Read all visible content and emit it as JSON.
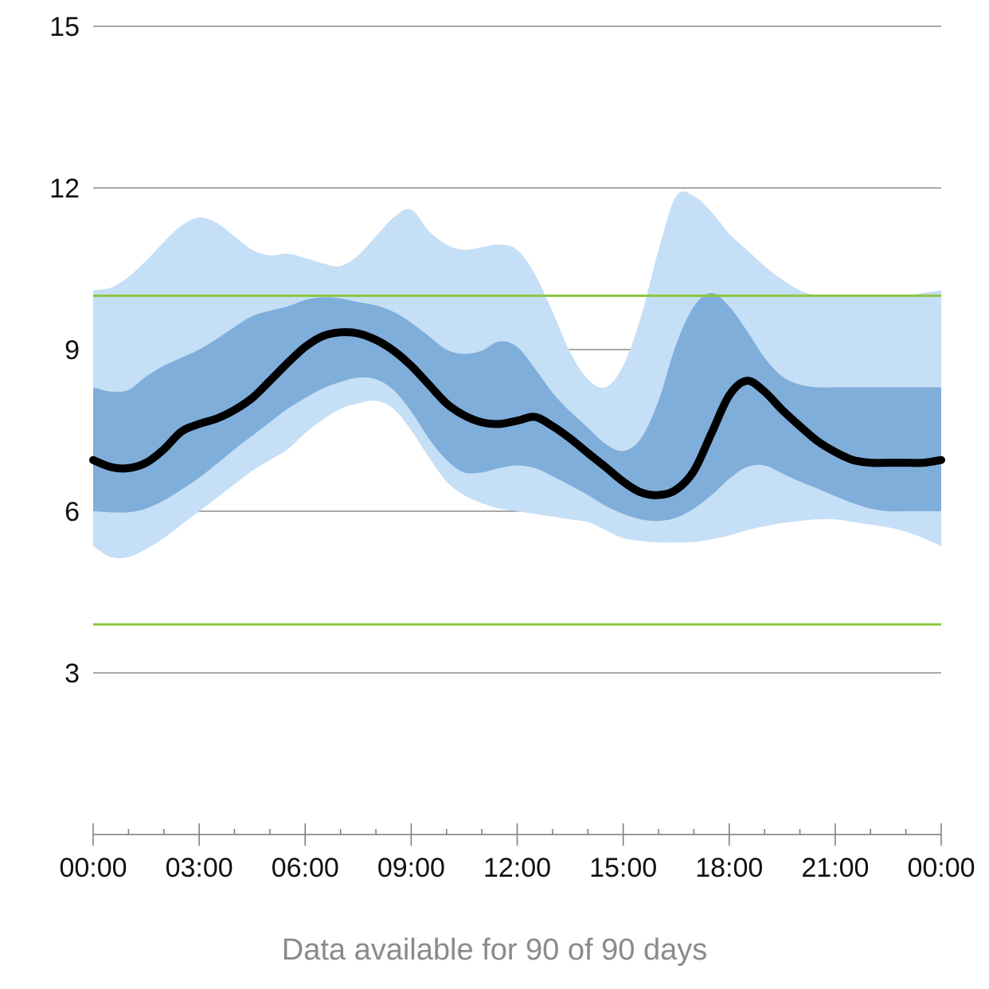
{
  "chart_data": {
    "type": "area",
    "title": "",
    "xlabel": "",
    "ylabel": "",
    "ylim": [
      0,
      15
    ],
    "yticks": [
      3,
      6,
      9,
      12,
      15
    ],
    "xticks": [
      0,
      3,
      6,
      9,
      12,
      15,
      18,
      21,
      24
    ],
    "xtick_labels": [
      "00:00",
      "03:00",
      "06:00",
      "09:00",
      "12:00",
      "15:00",
      "18:00",
      "21:00",
      "00:00"
    ],
    "target_range": {
      "low": 3.9,
      "high": 10.0,
      "color": "#8cc63f"
    },
    "x": [
      0,
      0.5,
      1,
      1.5,
      2,
      2.5,
      3,
      3.5,
      4,
      4.5,
      5,
      5.5,
      6,
      6.5,
      7,
      7.5,
      8,
      8.5,
      9,
      9.5,
      10,
      10.5,
      11,
      11.5,
      12,
      12.5,
      13,
      13.5,
      14,
      14.5,
      15,
      15.5,
      16,
      16.5,
      17,
      17.5,
      18,
      18.5,
      19,
      19.5,
      20,
      20.5,
      21,
      21.5,
      22,
      22.5,
      23,
      23.5,
      24
    ],
    "series": [
      {
        "name": "",
        "kind": "band",
        "color": "#c5dff7",
        "lower": [
          5.35,
          5.15,
          5.15,
          5.3,
          5.5,
          5.75,
          6.0,
          6.25,
          6.5,
          6.75,
          6.95,
          7.15,
          7.45,
          7.7,
          7.9,
          8.0,
          8.05,
          7.9,
          7.5,
          7.0,
          6.55,
          6.3,
          6.15,
          6.05,
          6.0,
          5.95,
          5.9,
          5.85,
          5.8,
          5.65,
          5.5,
          5.45,
          5.42,
          5.42,
          5.43,
          5.48,
          5.55,
          5.65,
          5.72,
          5.78,
          5.82,
          5.85,
          5.85,
          5.8,
          5.75,
          5.7,
          5.62,
          5.5,
          5.35
        ],
        "upper": [
          10.1,
          10.15,
          10.35,
          10.65,
          11.0,
          11.3,
          11.45,
          11.35,
          11.1,
          10.85,
          10.75,
          10.78,
          10.7,
          10.6,
          10.55,
          10.75,
          11.1,
          11.45,
          11.6,
          11.2,
          10.95,
          10.85,
          10.9,
          10.95,
          10.85,
          10.4,
          9.7,
          8.95,
          8.45,
          8.3,
          8.7,
          9.6,
          10.85,
          11.85,
          11.85,
          11.55,
          11.15,
          10.85,
          10.55,
          10.3,
          10.1,
          10.0,
          10.0,
          10.0,
          10.0,
          10.0,
          10.0,
          10.05,
          10.1
        ]
      },
      {
        "name": "",
        "kind": "band",
        "color": "#80aedb",
        "lower": [
          6.0,
          5.98,
          5.98,
          6.05,
          6.2,
          6.4,
          6.62,
          6.88,
          7.15,
          7.4,
          7.65,
          7.9,
          8.1,
          8.28,
          8.4,
          8.48,
          8.45,
          8.25,
          7.85,
          7.35,
          6.95,
          6.72,
          6.72,
          6.8,
          6.85,
          6.8,
          6.65,
          6.48,
          6.3,
          6.1,
          5.95,
          5.85,
          5.82,
          5.88,
          6.05,
          6.3,
          6.6,
          6.82,
          6.85,
          6.7,
          6.55,
          6.42,
          6.28,
          6.15,
          6.05,
          6.0,
          6.0,
          6.0,
          6.0
        ],
        "upper": [
          8.3,
          8.22,
          8.25,
          8.5,
          8.7,
          8.85,
          9.0,
          9.2,
          9.42,
          9.62,
          9.72,
          9.8,
          9.92,
          9.97,
          9.95,
          9.88,
          9.82,
          9.7,
          9.5,
          9.25,
          9.0,
          8.92,
          8.98,
          9.15,
          9.05,
          8.65,
          8.2,
          7.85,
          7.55,
          7.25,
          7.12,
          7.35,
          8.05,
          9.1,
          9.8,
          10.05,
          9.8,
          9.35,
          8.85,
          8.5,
          8.35,
          8.3,
          8.3,
          8.3,
          8.3,
          8.3,
          8.3,
          8.3,
          8.3
        ]
      },
      {
        "name": "",
        "kind": "line",
        "color": "#000000",
        "values": [
          6.95,
          6.82,
          6.8,
          6.9,
          7.15,
          7.48,
          7.62,
          7.72,
          7.88,
          8.1,
          8.42,
          8.75,
          9.05,
          9.25,
          9.32,
          9.3,
          9.18,
          8.98,
          8.7,
          8.35,
          8.0,
          7.78,
          7.65,
          7.62,
          7.68,
          7.75,
          7.58,
          7.35,
          7.08,
          6.82,
          6.55,
          6.35,
          6.3,
          6.4,
          6.75,
          7.45,
          8.15,
          8.42,
          8.22,
          7.88,
          7.58,
          7.3,
          7.1,
          6.95,
          6.9,
          6.9,
          6.9,
          6.9,
          6.95
        ]
      }
    ],
    "grid": true,
    "legend": "none",
    "note": "Data available for 90 of 90 days"
  }
}
